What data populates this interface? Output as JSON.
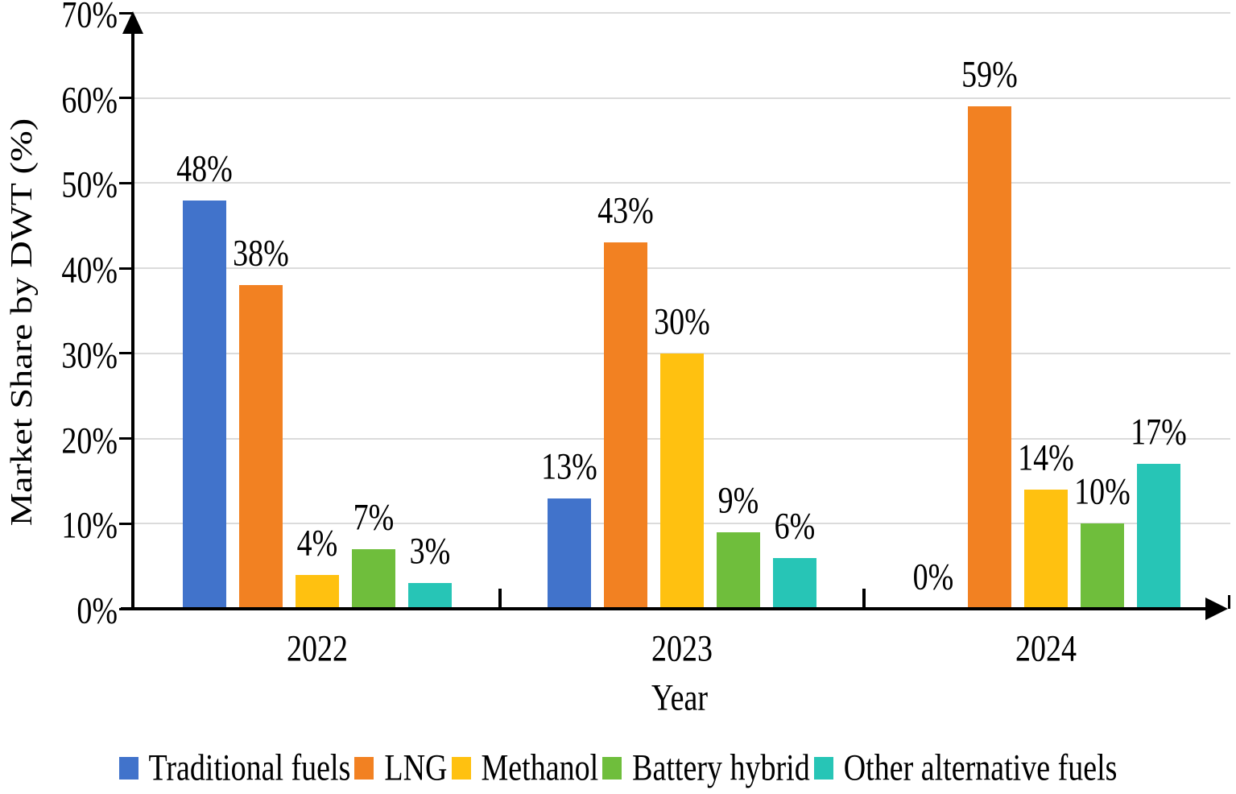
{
  "chart_data": {
    "type": "bar",
    "title": "",
    "xlabel": "Year",
    "ylabel": "Market Share by DWT (%)",
    "categories": [
      "2022",
      "2023",
      "2024"
    ],
    "series": [
      {
        "name": "Traditional fuels",
        "color": "#4173CB",
        "values": [
          48,
          13,
          0
        ]
      },
      {
        "name": "LNG",
        "color": "#F28122",
        "values": [
          38,
          43,
          59
        ]
      },
      {
        "name": "Methanol",
        "color": "#FFC110",
        "values": [
          4,
          30,
          14
        ]
      },
      {
        "name": "Battery hybrid",
        "color": "#6FBE3C",
        "values": [
          7,
          9,
          10
        ]
      },
      {
        "name": "Other alternative fuels",
        "color": "#27C5B6",
        "values": [
          3,
          6,
          17
        ]
      }
    ],
    "value_label_suffix": "%",
    "y_ticks": [
      {
        "value": 0,
        "label": "0%"
      },
      {
        "value": 10,
        "label": "10%"
      },
      {
        "value": 20,
        "label": "20%"
      },
      {
        "value": 30,
        "label": "30%"
      },
      {
        "value": 40,
        "label": "40%"
      },
      {
        "value": 50,
        "label": "50%"
      },
      {
        "value": 60,
        "label": "60%"
      },
      {
        "value": 70,
        "label": "70%"
      }
    ],
    "ylim": [
      0,
      70
    ],
    "grid": "horizontal",
    "gridline_color": "#DBDBDB",
    "axis_color": "#000000",
    "legend_position": "bottom"
  }
}
